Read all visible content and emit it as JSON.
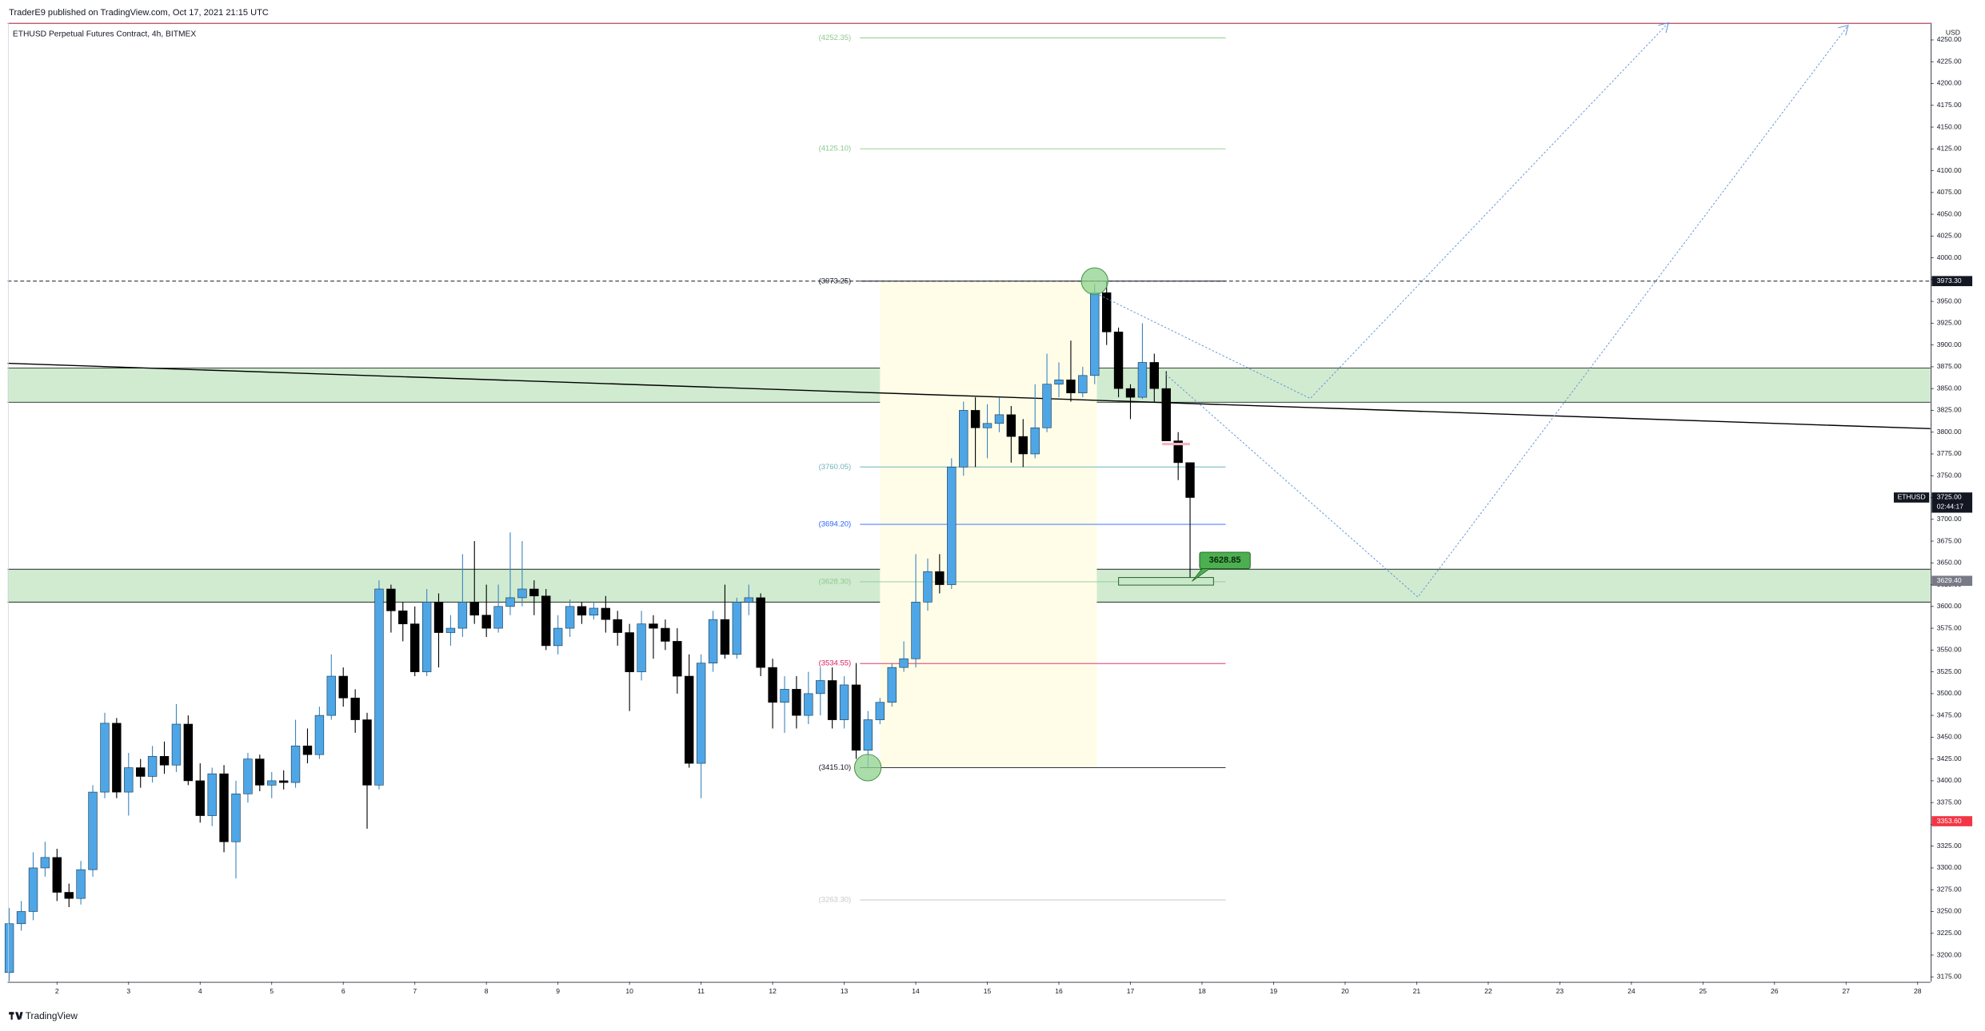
{
  "header": {
    "publisher": "TraderE9 published on TradingView.com, Oct 17, 2021 21:15 UTC",
    "symbol": "ETHUSD Perpetual Futures Contract, 4h, BITMEX"
  },
  "chart_data": {
    "type": "candlestick",
    "currency": "USD",
    "x": [
      1.333,
      1.5,
      1.667,
      1.833,
      2,
      2.167,
      2.333,
      2.5,
      2.667,
      2.833,
      3,
      3.167,
      3.333,
      3.5,
      3.667,
      3.833,
      4,
      4.167,
      4.333,
      4.5,
      4.667,
      4.833,
      5,
      5.167,
      5.333,
      5.5,
      5.667,
      5.833,
      6,
      6.167,
      6.333,
      6.5,
      6.667,
      6.833,
      7,
      7.167,
      7.333,
      7.5,
      7.667,
      7.833,
      8,
      8.167,
      8.333,
      8.5,
      8.667,
      8.833,
      9,
      9.167,
      9.333,
      9.5,
      9.667,
      9.833,
      10,
      10.167,
      10.333,
      10.5,
      10.667,
      10.833,
      11,
      11.167,
      11.333,
      11.5,
      11.667,
      11.833,
      12,
      12.167,
      12.333,
      12.5,
      12.667,
      12.833,
      13,
      13.167,
      13.333,
      13.5,
      13.667,
      13.833,
      14,
      14.167,
      14.333,
      14.5,
      14.667,
      14.833,
      15,
      15.167,
      15.333,
      15.5,
      15.667,
      15.833,
      16,
      16.167,
      16.333,
      16.5,
      16.667,
      16.833,
      17,
      17.167,
      17.333,
      17.5,
      17.667,
      17.833
    ],
    "open": [
      3180,
      3236,
      3250,
      3300,
      3312,
      3272,
      3265,
      3298,
      3387,
      3466,
      3387,
      3415,
      3405,
      3428,
      3418,
      3465,
      3400,
      3360,
      3408,
      3330,
      3385,
      3425,
      3395,
      3400,
      3398,
      3440,
      3430,
      3475,
      3520,
      3495,
      3470,
      3395,
      3620,
      3595,
      3580,
      3525,
      3605,
      3570,
      3575,
      3605,
      3590,
      3575,
      3600,
      3610,
      3620,
      3612,
      3555,
      3575,
      3600,
      3590,
      3598,
      3585,
      3570,
      3525,
      3580,
      3575,
      3560,
      3520,
      3420,
      3535,
      3585,
      3545,
      3605,
      3610,
      3530,
      3490,
      3505,
      3475,
      3500,
      3515,
      3470,
      3510,
      3435,
      3470,
      3490,
      3530,
      3540,
      3605,
      3640,
      3625,
      3760,
      3825,
      3805,
      3810,
      3820,
      3795,
      3775,
      3805,
      3855,
      3860,
      3845,
      3865,
      3960,
      3915,
      3850,
      3840,
      3880,
      3850,
      3790,
      3765
    ],
    "high": [
      3254,
      3262,
      3318,
      3330,
      3322,
      3282,
      3308,
      3395,
      3478,
      3472,
      3432,
      3425,
      3440,
      3445,
      3488,
      3475,
      3420,
      3415,
      3418,
      3400,
      3432,
      3430,
      3410,
      3412,
      3470,
      3460,
      3485,
      3545,
      3530,
      3505,
      3478,
      3630,
      3625,
      3605,
      3600,
      3620,
      3615,
      3590,
      3660,
      3675,
      3625,
      3625,
      3685,
      3675,
      3630,
      3620,
      3590,
      3608,
      3605,
      3605,
      3612,
      3595,
      3580,
      3595,
      3590,
      3585,
      3575,
      3545,
      3545,
      3595,
      3625,
      3610,
      3625,
      3615,
      3540,
      3520,
      3520,
      3525,
      3530,
      3530,
      3520,
      3535,
      3480,
      3495,
      3535,
      3560,
      3660,
      3655,
      3660,
      3770,
      3835,
      3840,
      3832,
      3840,
      3830,
      3815,
      3855,
      3890,
      3880,
      3905,
      3875,
      3970,
      3973,
      3920,
      3855,
      3925,
      3890,
      3870,
      3800,
      3765
    ],
    "low": [
      3170,
      3228,
      3240,
      3290,
      3262,
      3255,
      3258,
      3290,
      3380,
      3380,
      3360,
      3392,
      3398,
      3408,
      3410,
      3395,
      3352,
      3348,
      3318,
      3288,
      3375,
      3388,
      3380,
      3390,
      3392,
      3420,
      3425,
      3470,
      3485,
      3455,
      3345,
      3390,
      3570,
      3560,
      3520,
      3520,
      3530,
      3555,
      3565,
      3580,
      3565,
      3570,
      3590,
      3600,
      3590,
      3550,
      3545,
      3565,
      3580,
      3585,
      3570,
      3555,
      3480,
      3515,
      3540,
      3550,
      3500,
      3415,
      3380,
      3525,
      3540,
      3540,
      3590,
      3520,
      3460,
      3455,
      3460,
      3465,
      3475,
      3460,
      3460,
      3425,
      3415,
      3465,
      3485,
      3525,
      3530,
      3595,
      3615,
      3620,
      3750,
      3760,
      3770,
      3800,
      3765,
      3760,
      3770,
      3800,
      3840,
      3835,
      3840,
      3855,
      3900,
      3840,
      3815,
      3838,
      3835,
      3790,
      3745,
      3628
    ],
    "close": [
      3236,
      3250,
      3300,
      3312,
      3272,
      3265,
      3298,
      3387,
      3466,
      3387,
      3415,
      3405,
      3428,
      3418,
      3465,
      3400,
      3360,
      3408,
      3330,
      3385,
      3425,
      3395,
      3400,
      3398,
      3440,
      3430,
      3475,
      3520,
      3495,
      3470,
      3395,
      3620,
      3595,
      3580,
      3525,
      3605,
      3570,
      3575,
      3605,
      3590,
      3575,
      3600,
      3610,
      3620,
      3612,
      3555,
      3575,
      3600,
      3590,
      3598,
      3585,
      3570,
      3525,
      3580,
      3575,
      3560,
      3520,
      3420,
      3535,
      3585,
      3545,
      3605,
      3610,
      3530,
      3490,
      3505,
      3475,
      3500,
      3515,
      3470,
      3510,
      3435,
      3470,
      3490,
      3530,
      3540,
      3605,
      3640,
      3625,
      3760,
      3825,
      3805,
      3810,
      3820,
      3795,
      3775,
      3805,
      3855,
      3860,
      3845,
      3865,
      3960,
      3915,
      3850,
      3840,
      3880,
      3850,
      3790,
      3765,
      3725
    ],
    "up_color": "#4ea6e6",
    "down_color": "#000000",
    "xlim": [
      1.31,
      28.18
    ],
    "xticks": [
      2,
      3,
      4,
      5,
      6,
      7,
      8,
      9,
      10,
      11,
      12,
      13,
      14,
      15,
      16,
      17,
      18,
      19,
      20,
      21,
      22,
      23,
      24,
      25,
      26,
      27,
      28
    ],
    "ylim": [
      3169.5,
      4269.7
    ],
    "yticks": [
      {
        "value": 3175,
        "label": "3175.00"
      },
      {
        "value": 3200,
        "label": "3200.00"
      },
      {
        "value": 3225,
        "label": "3225.00"
      },
      {
        "value": 3250,
        "label": "3250.00"
      },
      {
        "value": 3275,
        "label": "3275.00"
      },
      {
        "value": 3300,
        "label": "3300.00"
      },
      {
        "value": 3325,
        "label": "3325.00"
      },
      {
        "value": 3350,
        "label": "3350.00"
      },
      {
        "value": 3375,
        "label": "3375.00"
      },
      {
        "value": 3400,
        "label": "3400.00"
      },
      {
        "value": 3425,
        "label": "3425.00"
      },
      {
        "value": 3450,
        "label": "3450.00"
      },
      {
        "value": 3475,
        "label": "3475.00"
      },
      {
        "value": 3500,
        "label": "3500.00"
      },
      {
        "value": 3525,
        "label": "3525.00"
      },
      {
        "value": 3550,
        "label": "3550.00"
      },
      {
        "value": 3575,
        "label": "3575.00"
      },
      {
        "value": 3600,
        "label": "3600.00"
      },
      {
        "value": 3625,
        "label": "3625.00"
      },
      {
        "value": 3650,
        "label": "3650.00"
      },
      {
        "value": 3675,
        "label": "3675.00"
      },
      {
        "value": 3700,
        "label": "3700.00"
      },
      {
        "value": 3725,
        "label": "3725.00"
      },
      {
        "value": 3750,
        "label": "3750.00"
      },
      {
        "value": 3775,
        "label": "3775.00"
      },
      {
        "value": 3800,
        "label": "3800.00"
      },
      {
        "value": 3825,
        "label": "3825.00"
      },
      {
        "value": 3850,
        "label": "3850.00"
      },
      {
        "value": 3875,
        "label": "3875.00"
      },
      {
        "value": 3900,
        "label": "3900.00"
      },
      {
        "value": 3925,
        "label": "3925.00"
      },
      {
        "value": 3950,
        "label": "3950.00"
      },
      {
        "value": 3975,
        "label": "3975.00"
      },
      {
        "value": 4000,
        "label": "4000.00"
      },
      {
        "value": 4025,
        "label": "4025.00"
      },
      {
        "value": 4050,
        "label": "4050.00"
      },
      {
        "value": 4075,
        "label": "4075.00"
      },
      {
        "value": 4100,
        "label": "4100.00"
      },
      {
        "value": 4125,
        "label": "4125.00"
      },
      {
        "value": 4150,
        "label": "4150.00"
      },
      {
        "value": 4175,
        "label": "4175.00"
      },
      {
        "value": 4200,
        "label": "4200.00"
      },
      {
        "value": 4225,
        "label": "4225.00"
      },
      {
        "value": 4250,
        "label": "4250.00"
      }
    ],
    "grid": false,
    "zones": [
      {
        "top": 3873.5,
        "bottom": 3834.3,
        "color": "#c9e8c9"
      },
      {
        "top": 3642.7,
        "bottom": 3605,
        "color": "#c9e8c9"
      }
    ],
    "highlight": {
      "x": [
        13.5,
        16.53
      ],
      "y": [
        3415.1,
        3973.25
      ],
      "color": "#fffde8"
    },
    "trendline": {
      "x": [
        1.31,
        28.18
      ],
      "y": [
        3879,
        3804
      ],
      "color": "#000000"
    },
    "levels": [
      {
        "value": 4252.35,
        "label": "(4252.35)",
        "color": "#8cc98c",
        "x": [
          13.22,
          18.33
        ]
      },
      {
        "value": 4125.1,
        "label": "(4125.10)",
        "color": "#8cc98c",
        "x": [
          13.22,
          18.33
        ]
      },
      {
        "value": 3973.25,
        "label": "(3973.25)",
        "color": "#131722",
        "x": [
          13.22,
          18.33
        ]
      },
      {
        "value": 3760.05,
        "label": "(3760.05)",
        "color": "#6fb3b8",
        "x": [
          13.22,
          18.33
        ]
      },
      {
        "value": 3694.2,
        "label": "(3694.20)",
        "color": "#2962ff",
        "x": [
          13.22,
          18.33
        ]
      },
      {
        "value": 3628.3,
        "label": "(3628.30)",
        "color": "#8cc98c",
        "x": [
          13.22,
          18.33
        ]
      },
      {
        "value": 3534.55,
        "label": "(3534.55)",
        "color": "#d81b60",
        "x": [
          13.22,
          18.33
        ]
      },
      {
        "value": 3415.1,
        "label": "(3415.10)",
        "color": "#131722",
        "x": [
          13.22,
          18.33
        ]
      },
      {
        "value": 3263.3,
        "label": "(3263.30)",
        "color": "#c8c8c8",
        "x": [
          13.22,
          18.33
        ]
      }
    ],
    "markers": [
      {
        "x": 16.5,
        "y": 3973.25
      },
      {
        "x": 13.33,
        "y": 3415.1
      }
    ],
    "annotation": {
      "x": 17.86,
      "value": 3628.85,
      "label": "3628.85"
    },
    "price_labels": [
      {
        "value": 3973.3,
        "label": "3973.30",
        "color": "#131722",
        "dashed": true
      },
      {
        "value": 3725,
        "label": "3725.00",
        "color": "#131722",
        "countdown": "02:44:17",
        "tag": "ETHUSD"
      },
      {
        "value": 3629.4,
        "label": "3629.40",
        "color": "#787b86"
      },
      {
        "value": 3353.6,
        "label": "3353.60",
        "color": "#f23645"
      }
    ]
  },
  "footer": {
    "brand": "TradingView"
  }
}
